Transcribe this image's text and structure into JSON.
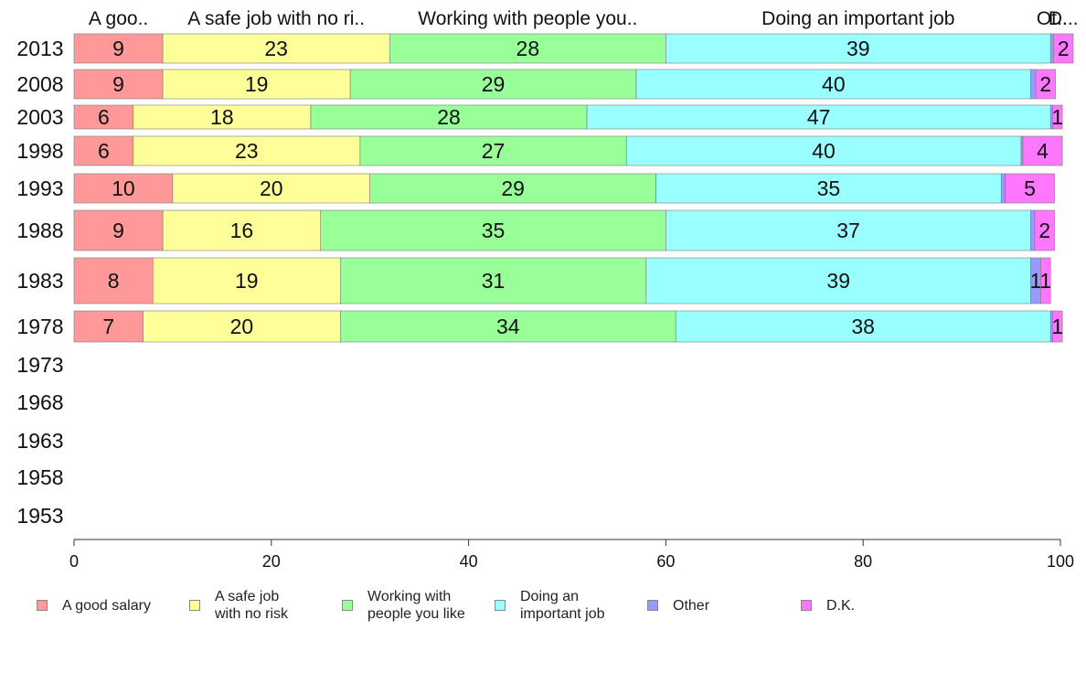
{
  "chart_data": {
    "type": "bar",
    "orientation": "horizontal",
    "stacked": true,
    "categories": [
      "2013",
      "2008",
      "2003",
      "1998",
      "1993",
      "1988",
      "1983",
      "1978",
      "1973",
      "1968",
      "1963",
      "1958",
      "1953"
    ],
    "series": [
      {
        "name": "A good salary",
        "column_label": "A goo..",
        "color": "#ff9999",
        "values": [
          9,
          9,
          6,
          6,
          10,
          9,
          8,
          7,
          null,
          null,
          null,
          null,
          null
        ]
      },
      {
        "name": "A safe job\nwith no risk",
        "column_label": "A safe job with no ri..",
        "color": "#ffff99",
        "values": [
          23,
          19,
          18,
          23,
          20,
          16,
          19,
          20,
          null,
          null,
          null,
          null,
          null
        ]
      },
      {
        "name": "Working with\npeople you like",
        "column_label": "Working with people you..",
        "color": "#99ff99",
        "values": [
          28,
          29,
          28,
          27,
          29,
          35,
          31,
          34,
          null,
          null,
          null,
          null,
          null
        ]
      },
      {
        "name": "Doing an\nimportant job",
        "column_label": "Doing an important job",
        "color": "#99ffff",
        "values": [
          39,
          40,
          47,
          40,
          35,
          37,
          39,
          38,
          null,
          null,
          null,
          null,
          null
        ]
      },
      {
        "name": "Other",
        "column_label": "Ot..",
        "color": "#9999ff",
        "values": [
          0.3,
          0.5,
          0.2,
          0.2,
          0.4,
          0.4,
          1,
          0.2,
          null,
          null,
          null,
          null,
          null
        ]
      },
      {
        "name": "D.K.",
        "column_label": "D...",
        "color": "#ff77ff",
        "values": [
          2,
          2,
          1,
          4,
          5,
          2,
          1,
          1,
          null,
          null,
          null,
          null,
          null
        ]
      }
    ],
    "data_labels": [
      [
        "9",
        "23",
        "28",
        "39",
        "",
        "2"
      ],
      [
        "9",
        "19",
        "29",
        "40",
        "",
        "2"
      ],
      [
        "6",
        "18",
        "28",
        "47",
        "",
        "1"
      ],
      [
        "6",
        "23",
        "27",
        "40",
        "",
        "4"
      ],
      [
        "10",
        "20",
        "29",
        "35",
        "",
        "5"
      ],
      [
        "9",
        "16",
        "35",
        "37",
        "",
        "2"
      ],
      [
        "8",
        "19",
        "31",
        "39",
        "1",
        "1"
      ],
      [
        "7",
        "20",
        "34",
        "38",
        "",
        "1"
      ],
      [
        "",
        "",
        "",
        "",
        "",
        ""
      ],
      [
        "",
        "",
        "",
        "",
        "",
        ""
      ],
      [
        "",
        "",
        "",
        "",
        "",
        ""
      ],
      [
        "",
        "",
        "",
        "",
        "",
        ""
      ],
      [
        "",
        "",
        "",
        "",
        "",
        ""
      ]
    ],
    "xlim": [
      0,
      100
    ],
    "xticks": [
      0,
      20,
      40,
      60,
      80,
      100
    ],
    "grid": false,
    "legend_position": "bottom",
    "title": "",
    "xlabel": "",
    "ylabel": ""
  }
}
